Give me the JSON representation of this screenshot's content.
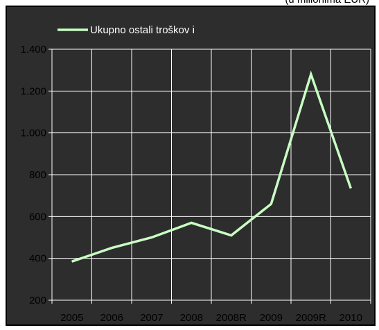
{
  "top_note": "(u milionima EUR)",
  "colors": {
    "plot_background": "#2d2d2d",
    "line": "#c9ffc3",
    "grid": "#ffffff",
    "legend_text": "#ffffff"
  },
  "chart_data": {
    "type": "line",
    "categories": [
      "2005",
      "2006",
      "2007",
      "2008",
      "2008R",
      "2009",
      "2009R",
      "2010"
    ],
    "series": [
      {
        "name": "Ukupno ostali troškovi",
        "values": [
          385,
          450,
          500,
          570,
          510,
          660,
          1280,
          735
        ]
      }
    ],
    "ylim": [
      200,
      1400
    ],
    "yticks": [
      200,
      400,
      600,
      800,
      1000,
      1200,
      1400
    ],
    "ytick_labels": [
      "200",
      "400",
      "600",
      "800",
      "1.000",
      "1.200",
      "1.400"
    ],
    "legend_text": "Ukupno ostali troškov i",
    "legend_position": "top-left",
    "grid": true
  }
}
